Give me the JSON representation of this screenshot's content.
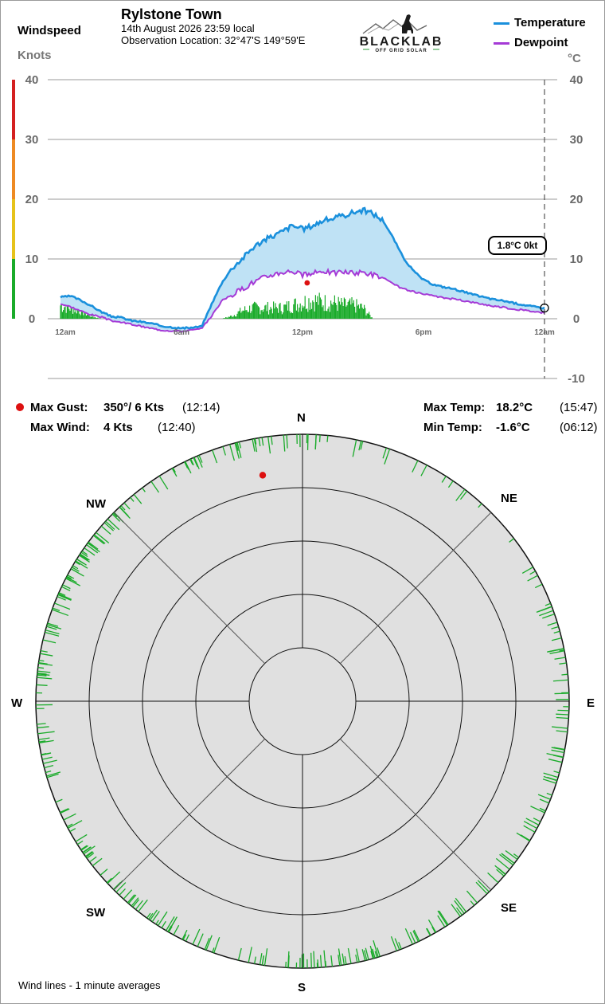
{
  "header": {
    "station_name": "Rylstone Town",
    "datetime": "14th August 2026  23:59 local",
    "location": "Observation Location: 32°47'S 149°59'E"
  },
  "logo": {
    "brand": "BLACKLAB",
    "tagline": "OFF GRID SOLAR"
  },
  "left_axis": {
    "title": "Windspeed",
    "unit": "Knots"
  },
  "right_axis": {
    "unit": "°C"
  },
  "legend": {
    "temperature": "Temperature",
    "dewpoint": "Dewpoint"
  },
  "colors": {
    "temperature": "#1a90dc",
    "dewpoint": "#a53ad6",
    "temp_fill": "#bfe2f5",
    "wind": "#1aab2a",
    "gust_marker": "#dd1111",
    "scale_colors": [
      "#1aab2a",
      "#e6c21a",
      "#ee8a22",
      "#d42020"
    ]
  },
  "current_reading": "1.8°C  0kt",
  "stats": {
    "max_gust_label": "Max Gust:",
    "max_gust_value": "350°/  6 Kts",
    "max_gust_time": "(12:14)",
    "max_wind_label": "Max Wind:",
    "max_wind_value": "4 Kts",
    "max_wind_time": "(12:40)",
    "max_temp_label": "Max Temp:",
    "max_temp_value": "18.2°C",
    "max_temp_time": "(15:47)",
    "min_temp_label": "Min Temp:",
    "min_temp_value": "-1.6°C",
    "min_temp_time": "(06:12)"
  },
  "compass": {
    "n": "N",
    "ne": "NE",
    "e": "E",
    "se": "SE",
    "s": "S",
    "sw": "SW",
    "w": "W",
    "nw": "NW"
  },
  "footer": {
    "note": "Wind lines - 1 minute averages"
  },
  "chart_data": [
    {
      "type": "line",
      "x_unit": "hours since 12am",
      "xticks": [
        0,
        6,
        12,
        18,
        24
      ],
      "xtick_labels": [
        "12am",
        "6am",
        "12pm",
        "6pm",
        "12am"
      ],
      "y_left": {
        "label": "Windspeed",
        "unit": "Knots",
        "lim": [
          0,
          40
        ],
        "ticks": [
          0,
          10,
          20,
          30,
          40
        ]
      },
      "y_right": {
        "unit": "°C",
        "lim": [
          -10,
          40
        ],
        "ticks": [
          -10,
          0,
          10,
          20,
          30,
          40
        ]
      },
      "grid": true,
      "legend": "top-right",
      "series": [
        {
          "name": "Temperature",
          "axis": "right",
          "x": [
            0,
            0.5,
            1,
            1.5,
            2,
            2.5,
            3,
            3.5,
            4,
            4.5,
            5,
            5.5,
            6,
            6.5,
            7,
            7.5,
            8,
            8.5,
            9,
            9.5,
            10,
            10.5,
            11,
            11.5,
            12,
            12.5,
            13,
            13.5,
            14,
            14.5,
            15,
            15.5,
            16,
            16.5,
            17,
            17.5,
            18,
            18.5,
            19,
            19.5,
            20,
            20.5,
            21,
            21.5,
            22,
            22.5,
            23,
            23.5,
            23.98
          ],
          "y": [
            3.6,
            3.8,
            3.1,
            2.2,
            1.2,
            0.4,
            0.2,
            -0.3,
            -0.5,
            -0.8,
            -1.2,
            -1.4,
            -1.6,
            -1.5,
            -1.3,
            2.5,
            6.0,
            8.5,
            10.0,
            11.8,
            13.0,
            13.8,
            14.6,
            15.6,
            15.0,
            15.6,
            16.4,
            16.8,
            17.2,
            17.8,
            18.2,
            17.6,
            16.4,
            13.5,
            10.2,
            8.0,
            6.5,
            5.7,
            5.3,
            5.0,
            4.5,
            4.0,
            3.6,
            3.2,
            3.0,
            2.6,
            2.3,
            2.0,
            1.8
          ]
        },
        {
          "name": "Dewpoint",
          "axis": "right",
          "x": [
            0,
            0.5,
            1,
            1.5,
            2,
            2.5,
            3,
            3.5,
            4,
            4.5,
            5,
            5.5,
            6,
            6.5,
            7,
            7.5,
            8,
            8.5,
            9,
            9.5,
            10,
            10.5,
            11,
            11.5,
            12,
            12.5,
            13,
            13.5,
            14,
            14.5,
            15,
            15.5,
            16,
            16.5,
            17,
            17.5,
            18,
            18.5,
            19,
            19.5,
            20,
            20.5,
            21,
            21.5,
            22,
            22.5,
            23,
            23.5,
            23.98
          ],
          "y": [
            2.5,
            2.0,
            1.3,
            0.7,
            0.3,
            -0.3,
            -0.6,
            -0.9,
            -1.3,
            -1.6,
            -1.9,
            -2.0,
            -2.1,
            -1.9,
            -1.7,
            0.5,
            3.0,
            4.0,
            5.0,
            6.0,
            6.8,
            7.4,
            7.8,
            8.0,
            7.3,
            7.5,
            8.1,
            7.6,
            7.9,
            7.6,
            7.8,
            7.4,
            6.8,
            5.8,
            5.0,
            4.5,
            4.1,
            3.8,
            3.5,
            3.3,
            3.0,
            2.7,
            2.4,
            2.1,
            1.9,
            1.6,
            1.4,
            1.2,
            1.0
          ]
        },
        {
          "name": "Windspeed",
          "axis": "left",
          "style": "bars",
          "x": [
            0,
            0.5,
            1,
            1.5,
            2,
            2.5,
            3,
            3.5,
            4,
            4.5,
            5,
            5.5,
            6,
            6.5,
            7,
            7.5,
            8,
            8.5,
            9,
            9.5,
            10,
            10.5,
            11,
            11.5,
            12,
            12.5,
            13,
            13.5,
            14,
            14.5,
            15,
            15.5,
            16,
            16.5,
            17,
            17.5,
            18,
            18.5,
            19,
            19.5,
            20,
            20.5,
            21,
            21.5,
            22,
            22.5,
            23,
            23.5,
            23.98
          ],
          "y": [
            2.5,
            2,
            1.5,
            0.5,
            0,
            0,
            0,
            0,
            0,
            0,
            0,
            0,
            0,
            0,
            0,
            0,
            0,
            0.5,
            1.5,
            2,
            2,
            2,
            2,
            2.5,
            3,
            3.5,
            3,
            3,
            2.5,
            2.5,
            2,
            0,
            0,
            0,
            0,
            0,
            0,
            0,
            0,
            0,
            0,
            0,
            0,
            0,
            0,
            0,
            0,
            0,
            0
          ]
        }
      ],
      "annotations": [
        {
          "label": "Max Gust",
          "x": 12.23,
          "y_knots": 6
        }
      ]
    },
    {
      "type": "polar",
      "directions": [
        "N",
        "NE",
        "E",
        "SE",
        "S",
        "SW",
        "W",
        "NW"
      ],
      "gust_marker": {
        "direction_deg": 350,
        "speed_kts": 6
      }
    }
  ]
}
